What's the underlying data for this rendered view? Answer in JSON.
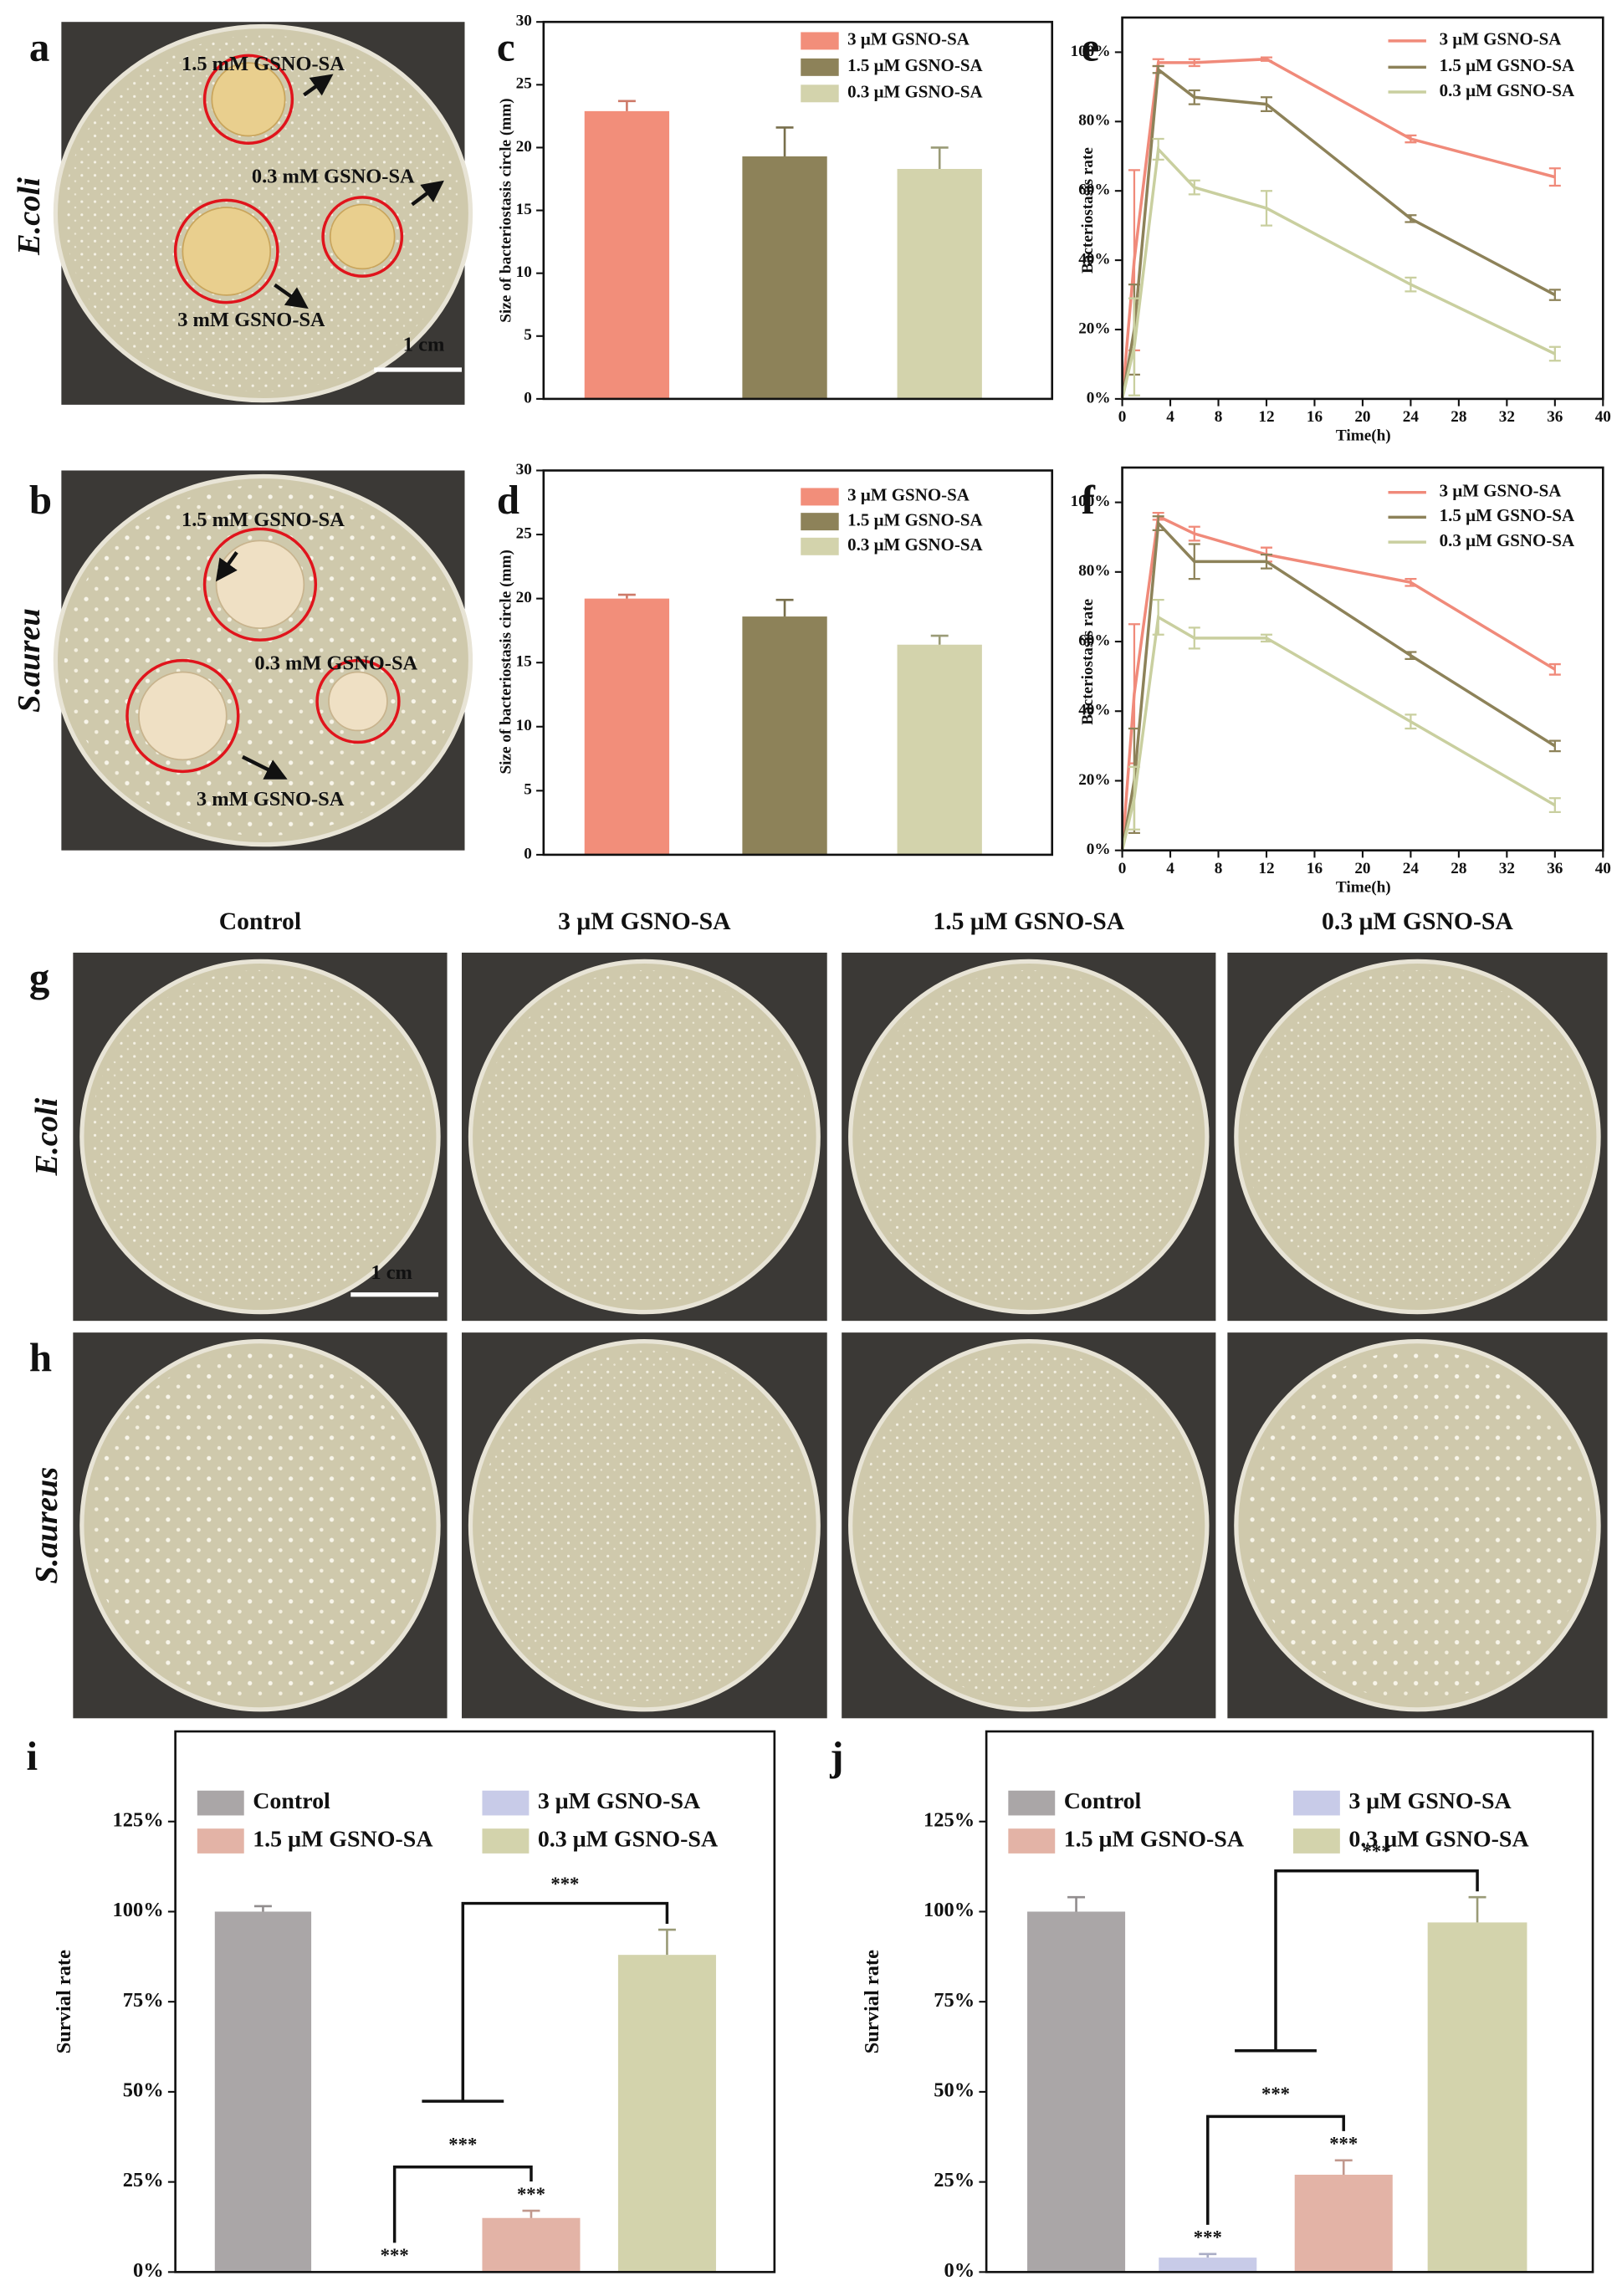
{
  "photos": {
    "a": {
      "letter": "a",
      "organism": "E.coli",
      "labels": [
        "1.5 mM GSNO-SA",
        "0.3 mM GSNO-SA",
        "3 mM GSNO-SA"
      ],
      "scale": "1 cm"
    },
    "b": {
      "letter": "b",
      "organism": "S.aureu",
      "labels": [
        "1.5 mM GSNO-SA",
        "0.3 mM GSNO-SA",
        "3 mM GSNO-SA"
      ]
    },
    "grid": {
      "columns": [
        "Control",
        "3 μM GSNO-SA",
        "1.5 μM GSNO-SA",
        "0.3 μM GSNO-SA"
      ],
      "rows": [
        {
          "letter": "g",
          "organism": "E.coli"
        },
        {
          "letter": "h",
          "organism": "S.aureus"
        }
      ],
      "scale": "1 cm"
    }
  },
  "chart_data": [
    {
      "panel": "c",
      "type": "bar",
      "ylabel": "Size of bacteriostasis circle (mm)",
      "ylim": [
        0,
        30
      ],
      "yticks": [
        0,
        5,
        10,
        15,
        20,
        25,
        30
      ],
      "series": [
        {
          "name": "3 μM GSNO-SA",
          "color": "#f28e7a",
          "values": [
            22.9
          ],
          "errors": [
            0.8
          ]
        },
        {
          "name": "1.5 μM GSNO-SA",
          "color": "#8d8259",
          "values": [
            19.3
          ],
          "errors": [
            2.3
          ]
        },
        {
          "name": "0.3 μM GSNO-SA",
          "color": "#d3d3ac",
          "values": [
            18.3
          ],
          "errors": [
            1.7
          ]
        }
      ]
    },
    {
      "panel": "d",
      "type": "bar",
      "ylabel": "Size of bacteriostasis circle (mm)",
      "ylim": [
        0,
        30
      ],
      "yticks": [
        0,
        5,
        10,
        15,
        20,
        25,
        30
      ],
      "series": [
        {
          "name": "3 μM GSNO-SA",
          "color": "#f28e7a",
          "values": [
            20.0
          ],
          "errors": [
            0.3
          ]
        },
        {
          "name": "1.5 μM GSNO-SA",
          "color": "#8d8259",
          "values": [
            18.6
          ],
          "errors": [
            1.3
          ]
        },
        {
          "name": "0.3 μM GSNO-SA",
          "color": "#d3d3ac",
          "values": [
            16.4
          ],
          "errors": [
            0.7
          ]
        }
      ]
    },
    {
      "panel": "e",
      "type": "line",
      "xlabel": "Time(h)",
      "ylabel": "Bacteriostasis rate",
      "x": [
        0,
        1,
        3,
        6,
        12,
        24,
        36
      ],
      "xlim": [
        0,
        40
      ],
      "xticks": [
        0,
        4,
        8,
        12,
        16,
        20,
        24,
        28,
        32,
        36,
        40
      ],
      "ylim": [
        0,
        110
      ],
      "yticks": [
        {
          "value": 0,
          "label": "0%"
        },
        {
          "value": 20,
          "label": "20%"
        },
        {
          "value": 40,
          "label": "40%"
        },
        {
          "value": 60,
          "label": "60%"
        },
        {
          "value": 80,
          "label": "80%"
        },
        {
          "value": 100,
          "label": "100%"
        }
      ],
      "series": [
        {
          "name": "3 μM GSNO-SA",
          "color": "#f08a7a",
          "values": [
            0,
            40,
            97,
            97,
            98,
            75,
            64
          ],
          "errors": [
            0,
            26,
            1,
            1,
            0.5,
            1,
            2.5
          ]
        },
        {
          "name": "1.5 μM GSNO-SA",
          "color": "#8d8259",
          "values": [
            0,
            20,
            95,
            87,
            85,
            52,
            30
          ],
          "errors": [
            0,
            13,
            1,
            2,
            2,
            1,
            1.5
          ]
        },
        {
          "name": "0.3 μM GSNO-SA",
          "color": "#c9cf9f",
          "values": [
            0,
            15,
            72,
            61,
            55,
            33,
            13
          ],
          "errors": [
            0,
            14,
            3,
            2,
            5,
            2,
            2
          ]
        }
      ]
    },
    {
      "panel": "f",
      "type": "line",
      "xlabel": "Time(h)",
      "ylabel": "Bacteriostasis rate",
      "x": [
        0,
        1,
        3,
        6,
        12,
        24,
        36
      ],
      "xlim": [
        0,
        40
      ],
      "xticks": [
        0,
        4,
        8,
        12,
        16,
        20,
        24,
        28,
        32,
        36,
        40
      ],
      "ylim": [
        0,
        110
      ],
      "yticks": [
        {
          "value": 0,
          "label": "0%"
        },
        {
          "value": 20,
          "label": "20%"
        },
        {
          "value": 40,
          "label": "40%"
        },
        {
          "value": 60,
          "label": "60%"
        },
        {
          "value": 80,
          "label": "80%"
        },
        {
          "value": 100,
          "label": "100%"
        }
      ],
      "series": [
        {
          "name": "3 μM GSNO-SA",
          "color": "#f08a7a",
          "values": [
            0,
            45,
            96,
            91,
            85,
            77,
            52
          ],
          "errors": [
            0,
            20,
            1,
            2,
            2,
            1,
            1.5
          ]
        },
        {
          "name": "1.5 μM GSNO-SA",
          "color": "#8d8259",
          "values": [
            0,
            20,
            94,
            83,
            83,
            56,
            30
          ],
          "errors": [
            0,
            15,
            2,
            5,
            2,
            1,
            1.5
          ]
        },
        {
          "name": "0.3 μM GSNO-SA",
          "color": "#c9cf9f",
          "values": [
            0,
            15,
            67,
            61,
            61,
            37,
            13
          ],
          "errors": [
            0,
            9,
            5,
            3,
            1,
            2,
            2
          ]
        }
      ]
    },
    {
      "panel": "i",
      "type": "bar",
      "ylabel": "Survial rate",
      "ylim": [
        0,
        150
      ],
      "yticks": [
        {
          "value": 0,
          "label": "0%"
        },
        {
          "value": 25,
          "label": "25%"
        },
        {
          "value": 50,
          "label": "50%"
        },
        {
          "value": 75,
          "label": "75%"
        },
        {
          "value": 100,
          "label": "100%"
        },
        {
          "value": 125,
          "label": "125%"
        }
      ],
      "series": [
        {
          "name": "Control",
          "color": "#aaa6a7",
          "values": [
            100
          ],
          "errors": [
            1.5
          ]
        },
        {
          "name": "3 μM GSNO-SA",
          "color": "#c8cbe8",
          "values": [
            0
          ],
          "errors": [
            0
          ]
        },
        {
          "name": "1.5 μM GSNO-SA",
          "color": "#e3b3a6",
          "values": [
            15
          ],
          "errors": [
            2
          ]
        },
        {
          "name": "0.3 μM GSNO-SA",
          "color": "#d3d3ac",
          "values": [
            88
          ],
          "errors": [
            7
          ]
        }
      ],
      "annotations": [
        "***",
        "***",
        "***",
        "***"
      ]
    },
    {
      "panel": "j",
      "type": "bar",
      "ylabel": "Survial rate",
      "ylim": [
        0,
        150
      ],
      "yticks": [
        {
          "value": 0,
          "label": "0%"
        },
        {
          "value": 25,
          "label": "25%"
        },
        {
          "value": 50,
          "label": "50%"
        },
        {
          "value": 75,
          "label": "75%"
        },
        {
          "value": 100,
          "label": "100%"
        },
        {
          "value": 125,
          "label": "125%"
        }
      ],
      "series": [
        {
          "name": "Control",
          "color": "#aaa6a7",
          "values": [
            100
          ],
          "errors": [
            4
          ]
        },
        {
          "name": "3 μM GSNO-SA",
          "color": "#c8cbe8",
          "values": [
            4
          ],
          "errors": [
            1
          ]
        },
        {
          "name": "1.5 μM GSNO-SA",
          "color": "#e3b3a6",
          "values": [
            27
          ],
          "errors": [
            4
          ]
        },
        {
          "name": "0.3 μM GSNO-SA",
          "color": "#d3d3ac",
          "values": [
            97
          ],
          "errors": [
            7
          ]
        }
      ],
      "annotations": [
        "***",
        "***",
        "***",
        "***"
      ]
    }
  ]
}
